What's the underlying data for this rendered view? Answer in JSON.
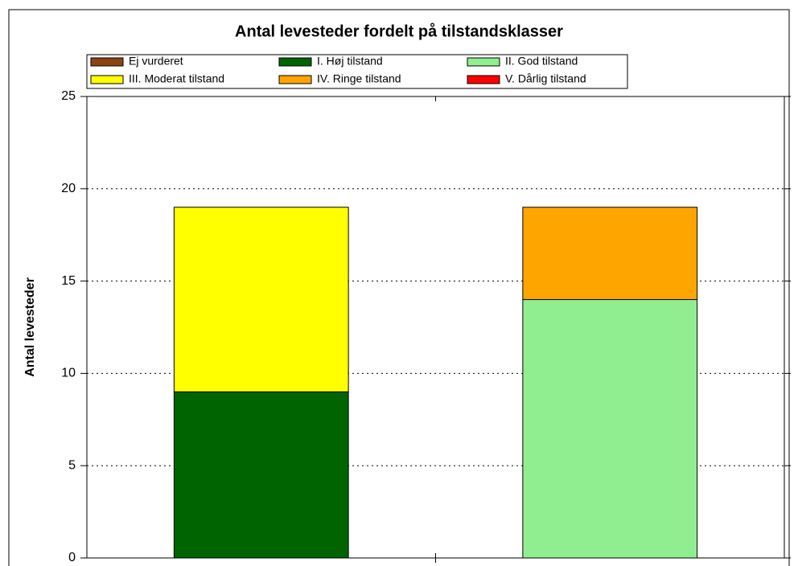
{
  "chart_data": {
    "type": "stacked_bar",
    "title": "Antal levesteder fordelt på tilstandsklasser",
    "y_label": "Antal levesteder",
    "categories": [
      null,
      null
    ],
    "series": [
      {
        "name": "Ej vurderet",
        "color": "#8b4513",
        "values": [
          0,
          0
        ]
      },
      {
        "name": "I. Høj tilstand",
        "color": "#006400",
        "values": [
          9,
          0
        ]
      },
      {
        "name": "II. God tilstand",
        "color": "#90ee90",
        "values": [
          0,
          14
        ]
      },
      {
        "name": "III. Moderat tilstand",
        "color": "#ffff00",
        "values": [
          10,
          0
        ]
      },
      {
        "name": "IV. Ringe tilstand",
        "color": "#ffa500",
        "values": [
          0,
          5
        ]
      },
      {
        "name": "V. Dårlig tilstand",
        "color": "#ff0000",
        "values": [
          0,
          0
        ]
      }
    ],
    "ylim": [
      0,
      25
    ],
    "yticks": [
      0,
      5,
      10,
      15,
      20,
      25
    ],
    "grid": true,
    "legend": "top"
  }
}
